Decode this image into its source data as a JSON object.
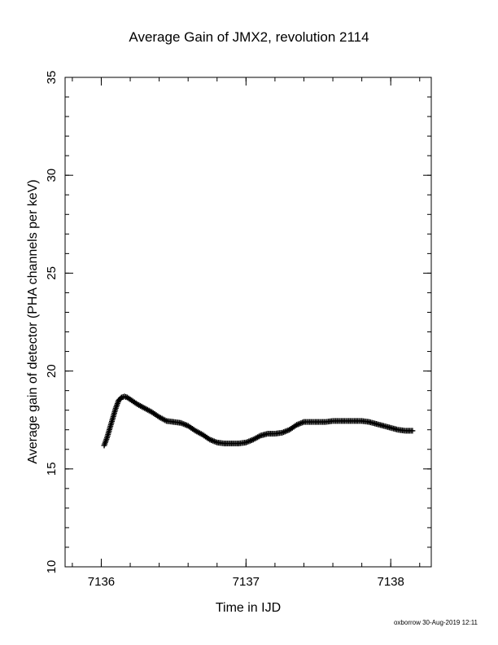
{
  "chart_data": {
    "type": "scatter",
    "title": "Average Gain of JMX2, revolution 2114",
    "xlabel": "Time in IJD",
    "ylabel": "Average gain of detector (PHA channels per keV)",
    "xlim": [
      7135.75,
      7138.28
    ],
    "ylim": [
      10,
      35
    ],
    "xticks": [
      7136,
      7137,
      7138
    ],
    "yticks": [
      10,
      15,
      20,
      25,
      30,
      35
    ],
    "marker": "plus",
    "marker_color": "#000000",
    "grid": false,
    "series": [
      {
        "x": [
          7136.02,
          7136.04,
          7136.06,
          7136.08,
          7136.1,
          7136.12,
          7136.14,
          7136.16,
          7136.18,
          7136.2,
          7136.22,
          7136.25,
          7136.3,
          7136.35,
          7136.4,
          7136.45,
          7136.5,
          7136.55,
          7136.6,
          7136.65,
          7136.7,
          7136.75,
          7136.8,
          7136.85,
          7136.9,
          7136.95,
          7137.0,
          7137.05,
          7137.1,
          7137.15,
          7137.2,
          7137.25,
          7137.3,
          7137.35,
          7137.4,
          7137.45,
          7137.5,
          7137.55,
          7137.6,
          7137.65,
          7137.7,
          7137.75,
          7137.8,
          7137.85,
          7137.9,
          7137.95,
          7138.0,
          7138.05,
          7138.1,
          7138.15
        ],
        "y": [
          16.2,
          16.6,
          17.1,
          17.6,
          18.1,
          18.5,
          18.65,
          18.7,
          18.65,
          18.55,
          18.45,
          18.3,
          18.1,
          17.9,
          17.65,
          17.45,
          17.4,
          17.35,
          17.2,
          16.95,
          16.75,
          16.5,
          16.35,
          16.3,
          16.3,
          16.3,
          16.35,
          16.5,
          16.7,
          16.8,
          16.8,
          16.85,
          17.0,
          17.25,
          17.4,
          17.4,
          17.4,
          17.4,
          17.45,
          17.45,
          17.45,
          17.45,
          17.45,
          17.4,
          17.3,
          17.2,
          17.1,
          17.0,
          16.95,
          16.95
        ]
      }
    ]
  },
  "footer": "oxborrow 30-Aug-2019 12:11"
}
